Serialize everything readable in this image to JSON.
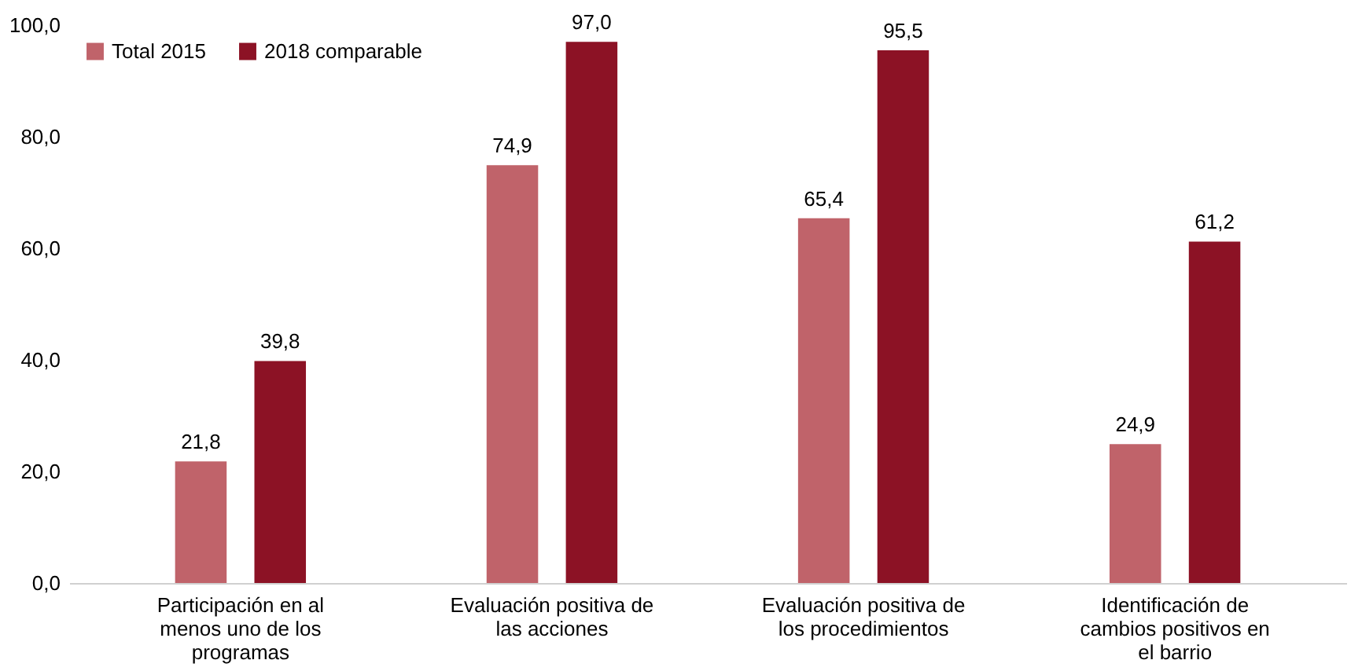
{
  "chart_data": {
    "type": "bar",
    "categories": [
      "Participación en al menos uno de los programas",
      "Evaluación positiva de las acciones",
      "Evaluación positiva de los procedimientos",
      "Identificación de cambios positivos en el barrio"
    ],
    "series": [
      {
        "name": "Total 2015",
        "color": "#c0636a",
        "values": [
          21.8,
          74.9,
          65.4,
          24.9
        ],
        "value_labels": [
          "21,8",
          "74,9",
          "65,4",
          "24,9"
        ]
      },
      {
        "name": "2018 comparable",
        "color": "#8c1225",
        "values": [
          39.8,
          97.0,
          95.5,
          61.2
        ],
        "value_labels": [
          "39,8",
          "97,0",
          "95,5",
          "61,2"
        ]
      }
    ],
    "ylim": [
      0,
      100
    ],
    "yticks": [
      {
        "value": 0,
        "label": "0,0"
      },
      {
        "value": 20,
        "label": "20,0"
      },
      {
        "value": 40,
        "label": "40,0"
      },
      {
        "value": 60,
        "label": "60,0"
      },
      {
        "value": 80,
        "label": "80,0"
      },
      {
        "value": 100,
        "label": "100,0"
      }
    ],
    "grid": false,
    "legend": "top left"
  }
}
